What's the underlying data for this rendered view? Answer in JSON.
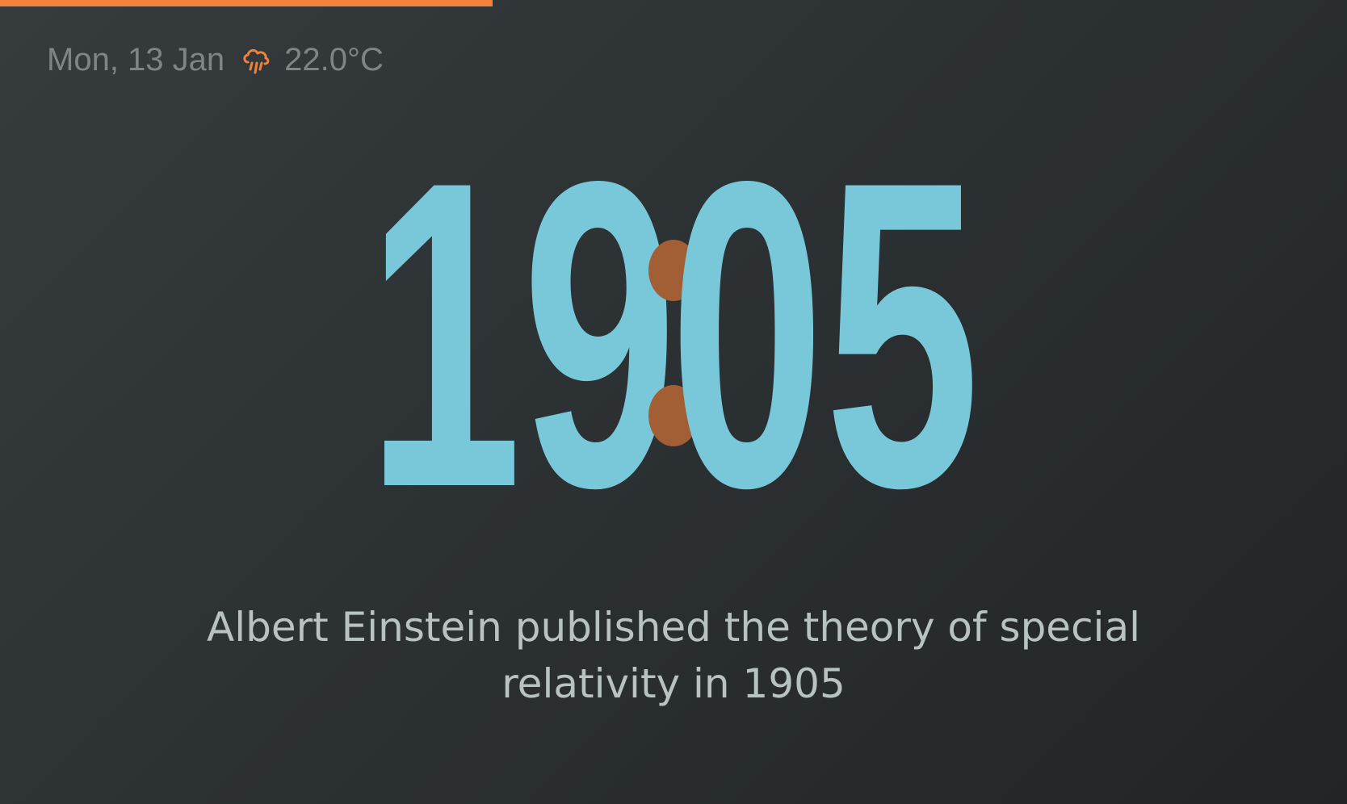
{
  "progress": {
    "fraction": 0.366,
    "color": "#f0823c"
  },
  "status": {
    "date": "Mon, 13 Jan",
    "weather_icon": "rain-cloud-icon",
    "temperature": "22.0°C"
  },
  "clock": {
    "hours": "19",
    "minutes": "05",
    "digit_color": "#78c8da",
    "colon_color": "#a25f36"
  },
  "fact": {
    "text": "Albert Einstein published the theory of special relativity in 1905"
  }
}
